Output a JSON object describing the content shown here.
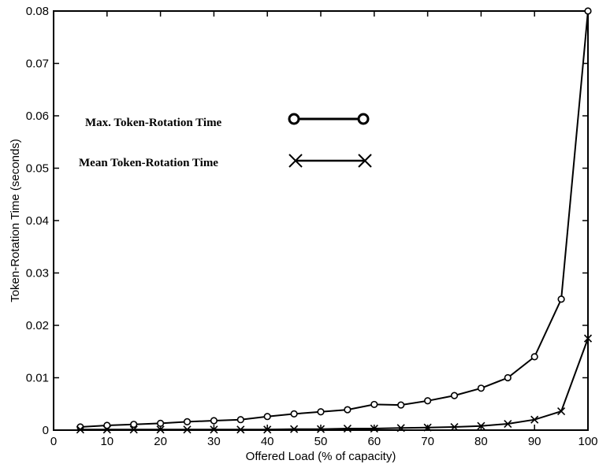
{
  "chart_data": {
    "type": "line",
    "title": "",
    "xlabel": "Offered Load (% of capacity)",
    "ylabel": "Token-Rotation Time (seconds)",
    "xlim": [
      0,
      100
    ],
    "ylim": [
      0,
      0.08
    ],
    "xticks": [
      0,
      10,
      20,
      30,
      40,
      50,
      60,
      70,
      80,
      90,
      100
    ],
    "yticks": [
      0,
      0.01,
      0.02,
      0.03,
      0.04,
      0.05,
      0.06,
      0.07,
      0.08
    ],
    "xtick_labels": [
      "0",
      "10",
      "20",
      "30",
      "40",
      "50",
      "60",
      "70",
      "80",
      "90",
      "100"
    ],
    "ytick_labels": [
      "0",
      "0.01",
      "0.02",
      "0.03",
      "0.04",
      "0.05",
      "0.06",
      "0.07",
      "0.08"
    ],
    "grid": false,
    "legend_placement": "upper-left",
    "x": [
      5,
      10,
      15,
      20,
      25,
      30,
      35,
      40,
      45,
      50,
      55,
      60,
      65,
      70,
      75,
      80,
      85,
      90,
      95,
      100
    ],
    "series": [
      {
        "name": "Max. Token-Rotation Time",
        "marker": "circle",
        "values": [
          0.0006,
          0.0009,
          0.0011,
          0.0013,
          0.0016,
          0.0018,
          0.002,
          0.0026,
          0.0031,
          0.0035,
          0.0039,
          0.0049,
          0.0048,
          0.0056,
          0.0066,
          0.008,
          0.01,
          0.014,
          0.025,
          0.08
        ]
      },
      {
        "name": "Mean Token-Rotation Time",
        "marker": "x",
        "values": [
          0.0001,
          0.0001,
          0.0001,
          0.0001,
          0.0001,
          0.0001,
          0.0001,
          0.0001,
          0.0002,
          0.0002,
          0.0003,
          0.0003,
          0.0004,
          0.0005,
          0.0006,
          0.0008,
          0.0012,
          0.002,
          0.0036,
          0.0175
        ]
      }
    ]
  }
}
